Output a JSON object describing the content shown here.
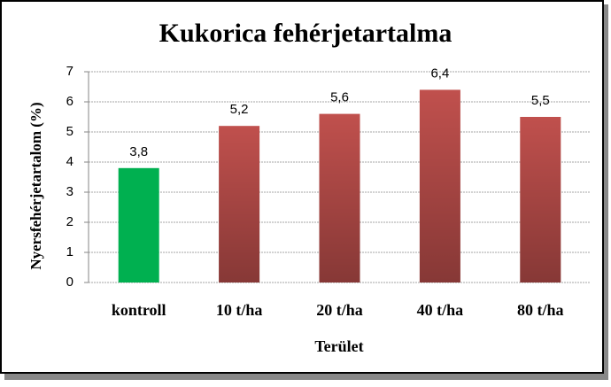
{
  "chart_data": {
    "type": "bar",
    "title": "Kukorica fehérjetartalma",
    "x_label": "Terület",
    "y_label": "Nyersfehérjetartalom (%)",
    "categories": [
      "kontroll",
      "10 t/ha",
      "20 t/ha",
      "40 t/ha",
      "80 t/ha"
    ],
    "values": [
      3.8,
      5.2,
      5.6,
      6.4,
      5.5
    ],
    "value_labels": [
      "3,8",
      "5,2",
      "5,6",
      "6,4",
      "5,5"
    ],
    "colors": [
      "#00b050",
      "#c0504d",
      "#c0504d",
      "#c0504d",
      "#c0504d"
    ],
    "ylim": [
      0,
      7
    ],
    "yticks": [
      0,
      1,
      2,
      3,
      4,
      5,
      6,
      7
    ],
    "grid": true
  }
}
